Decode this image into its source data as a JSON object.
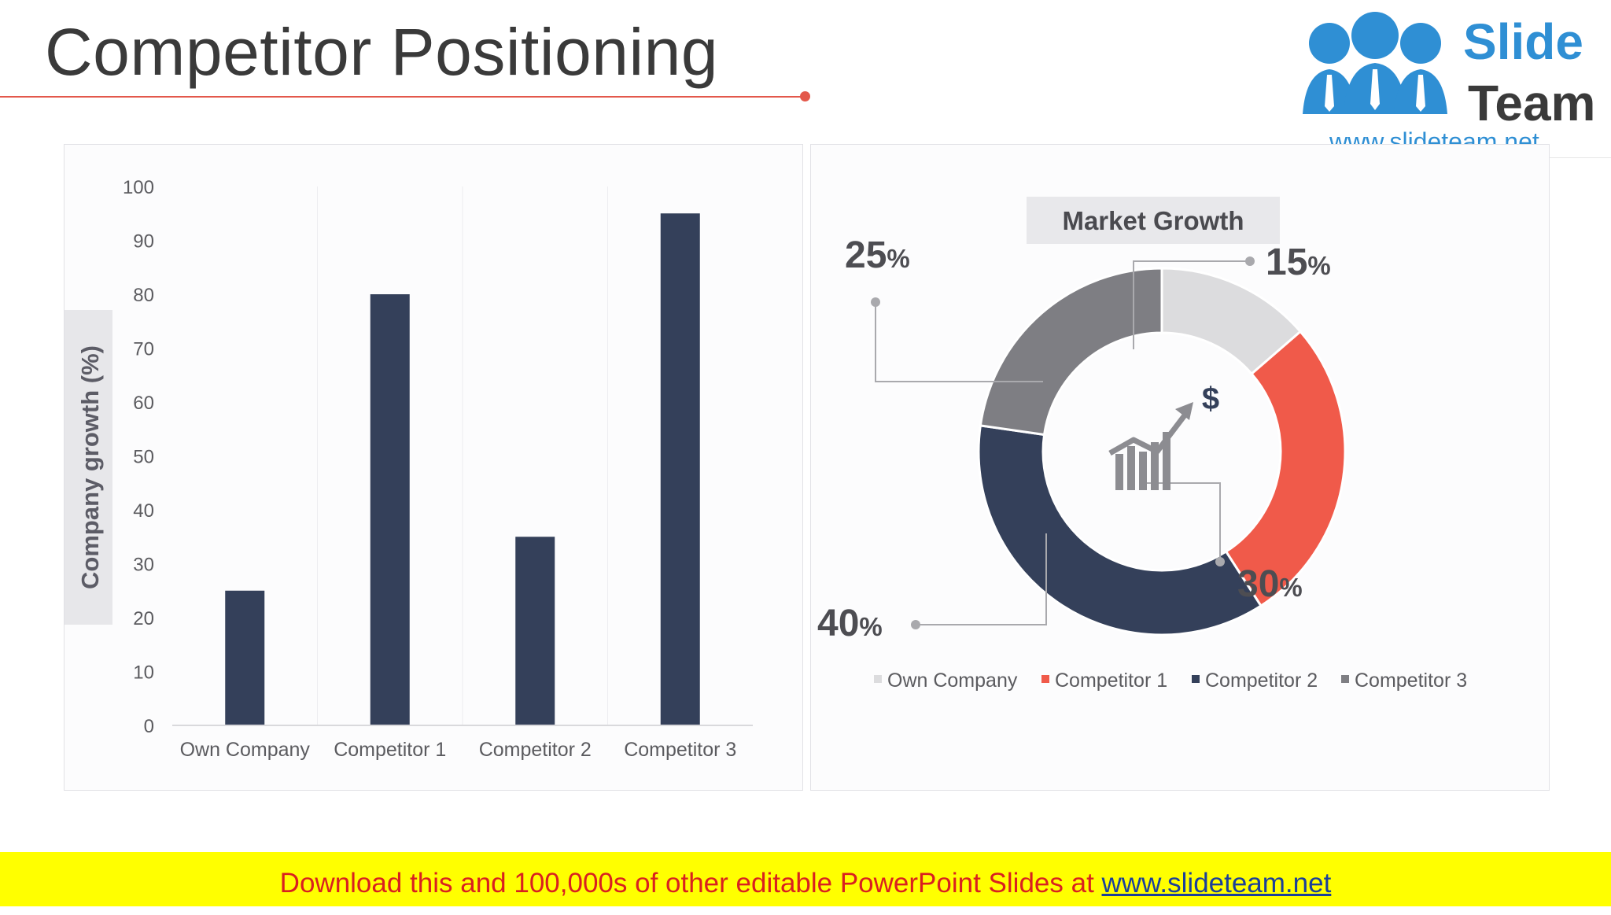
{
  "slide": {
    "title": "Competitor Positioning"
  },
  "logo": {
    "word1": "Slide",
    "word2": "Team",
    "url": "www.slideteam.net"
  },
  "banner": {
    "text": "Download this and 100,000s of other editable PowerPoint Slides at ",
    "link": "www.slideteam.net"
  },
  "colors": {
    "accent": "#e3584b",
    "navy": "#34405a",
    "red": "#f05a4a",
    "gray_dark": "#7e7e83",
    "gray_light": "#dcdcde"
  },
  "chart_data": [
    {
      "type": "bar",
      "categories": [
        "Own Company",
        "Competitor 1",
        "Competitor 2",
        "Competitor 3"
      ],
      "values": [
        25,
        80,
        35,
        95
      ],
      "ylabel": "Company growth (%)",
      "ylim": [
        0,
        100
      ],
      "yticks": [
        0,
        10,
        20,
        30,
        40,
        50,
        60,
        70,
        80,
        90,
        100
      ],
      "color": "#34405a",
      "grid": false
    },
    {
      "type": "pie",
      "style": "donut",
      "title": "Market Growth",
      "categories": [
        "Own Company",
        "Competitor 1",
        "Competitor 2",
        "Competitor 3"
      ],
      "values": [
        15,
        30,
        40,
        25
      ],
      "labels": [
        "15",
        "30",
        "40",
        "25"
      ],
      "unit": "%",
      "colors": [
        "#dcdcde",
        "#f05a4a",
        "#34405a",
        "#7e7e83"
      ],
      "legend_position": "bottom",
      "center_icon": "growth-chart-dollar-icon"
    }
  ]
}
